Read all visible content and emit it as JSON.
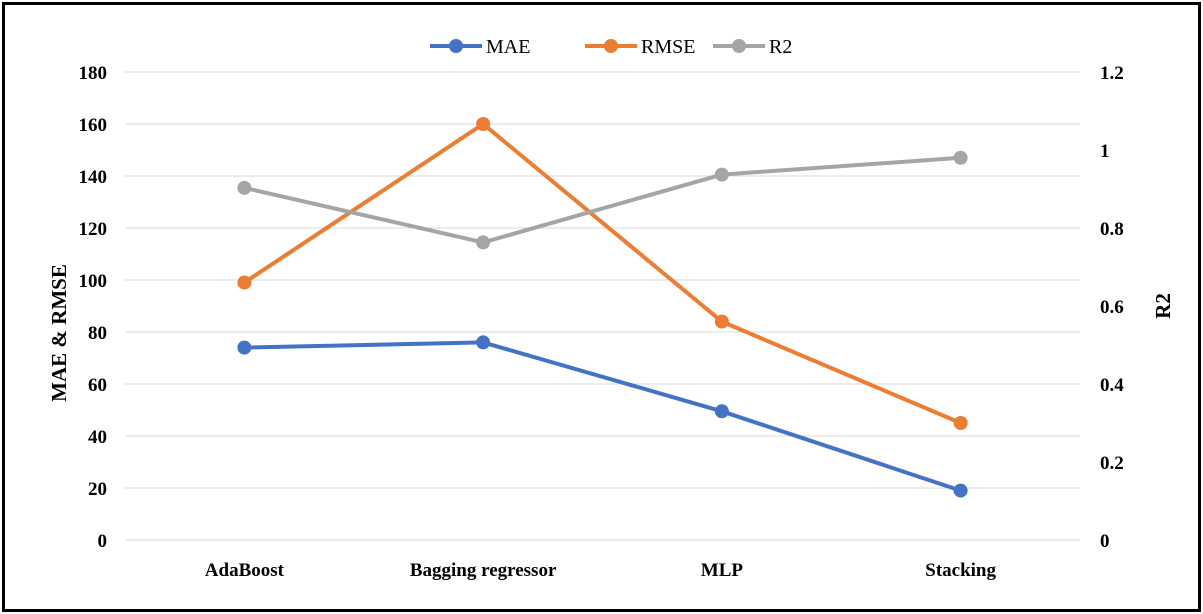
{
  "chart_data": {
    "type": "line",
    "categories": [
      "AdaBoost",
      "Bagging regressor",
      "MLP",
      "Stacking"
    ],
    "series": [
      {
        "name": "MAE",
        "axis": "left",
        "color": "#4472C4",
        "values": [
          74,
          76,
          49.5,
          19
        ]
      },
      {
        "name": "RMSE",
        "axis": "left",
        "color": "#ED7D31",
        "values": [
          99,
          160,
          84,
          45
        ]
      },
      {
        "name": "R2",
        "axis": "right",
        "color": "#A5A5A5",
        "values": [
          0.903,
          0.763,
          0.937,
          0.98
        ]
      }
    ],
    "ylabel": "MAE & RMSE",
    "y2label": "R2",
    "ylim": [
      0,
      180
    ],
    "y2lim": [
      0,
      1.2
    ],
    "yticks": [
      "0",
      "20",
      "40",
      "60",
      "80",
      "100",
      "120",
      "140",
      "160",
      "180"
    ],
    "y2ticks": [
      "0",
      "0.2",
      "0.4",
      "0.6",
      "0.8",
      "1",
      "1.2"
    ],
    "grid": true,
    "legend_position": "top-center"
  }
}
